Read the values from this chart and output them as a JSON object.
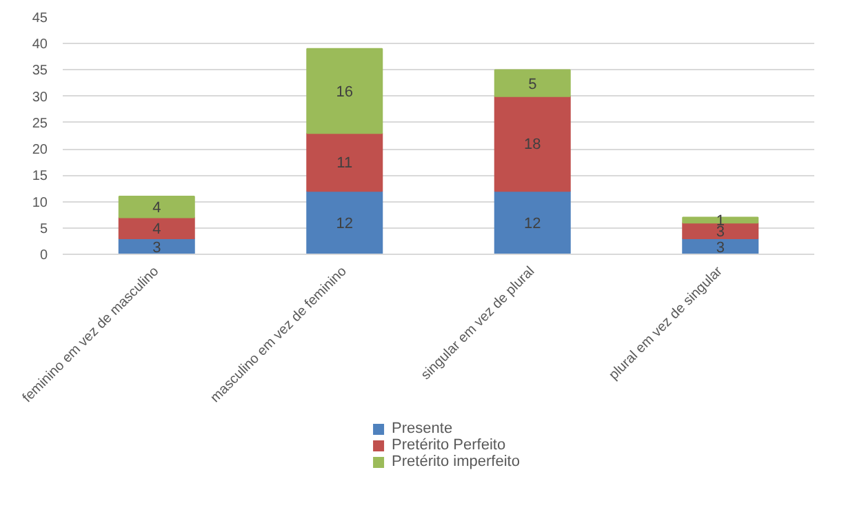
{
  "chart_data": {
    "type": "bar",
    "stacked": true,
    "categories": [
      "feminino em vez de masculino",
      "masculino em vez de feminino",
      "singular em vez de plural",
      "plural em vez de singular"
    ],
    "series": [
      {
        "name": "Presente",
        "color": "#4f81bd",
        "values": [
          3,
          12,
          12,
          3
        ]
      },
      {
        "name": "Pretérito Perfeito",
        "color": "#c0504d",
        "values": [
          4,
          11,
          18,
          3
        ]
      },
      {
        "name": "Pretérito imperfeito",
        "color": "#9bbb59",
        "values": [
          4,
          16,
          5,
          1
        ]
      }
    ],
    "ylim": [
      0,
      45
    ],
    "yticks": [
      0,
      5,
      10,
      15,
      20,
      25,
      30,
      35,
      40,
      45
    ],
    "grid": "y",
    "legend": "bottom",
    "data_labels": true
  }
}
